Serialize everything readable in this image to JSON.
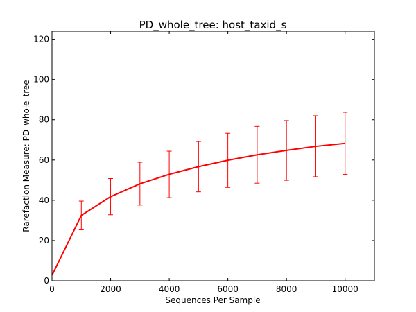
{
  "chart_data": {
    "type": "line",
    "title": "PD_whole_tree: host_taxid_s",
    "xlabel": "Sequences Per Sample",
    "ylabel": "Rarefaction Measure: PD_whole_tree",
    "xlim": [
      0,
      11000
    ],
    "ylim": [
      0,
      124
    ],
    "xticks": [
      0,
      2000,
      4000,
      6000,
      8000,
      10000
    ],
    "yticks": [
      0,
      20,
      40,
      60,
      80,
      100,
      120
    ],
    "grid": false,
    "legend": "none",
    "series": [
      {
        "color": "#ff0000",
        "x": [
          10,
          1000,
          2000,
          3000,
          4000,
          5000,
          6000,
          7000,
          8000,
          9000,
          10000
        ],
        "y": [
          3.0,
          32.5,
          41.8,
          48.2,
          52.9,
          56.7,
          59.9,
          62.6,
          64.8,
          66.8,
          68.3
        ],
        "err_low": [
          null,
          25.3,
          32.8,
          37.6,
          41.3,
          44.2,
          46.4,
          48.5,
          49.9,
          51.7,
          52.9
        ],
        "err_high": [
          null,
          39.6,
          50.8,
          58.9,
          64.4,
          69.2,
          73.3,
          76.7,
          79.6,
          82.0,
          83.7
        ]
      }
    ]
  }
}
